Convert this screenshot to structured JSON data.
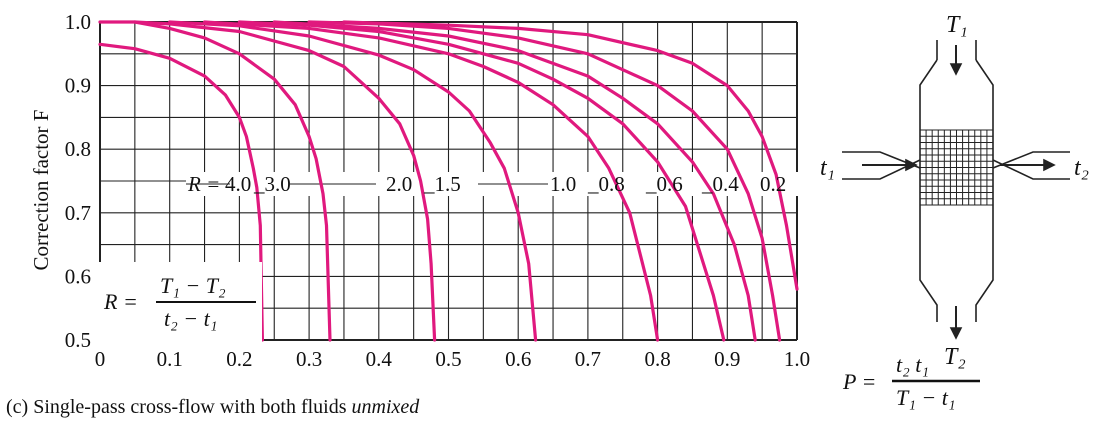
{
  "chart_data": {
    "type": "line",
    "ylabel": "Correction factor F",
    "xlim": [
      0,
      1.0
    ],
    "ylim": [
      0.5,
      1.0
    ],
    "x_ticks": [
      "0",
      "0.1",
      "0.2",
      "0.3",
      "0.4",
      "0.5",
      "0.6",
      "0.7",
      "0.8",
      "0.9",
      "1.0"
    ],
    "y_ticks": [
      "0.5",
      "0.6",
      "0.7",
      "0.8",
      "0.9",
      "1.0"
    ],
    "series": [
      {
        "name": "4.0",
        "x": [
          0,
          0.05,
          0.1,
          0.15,
          0.18,
          0.2,
          0.21,
          0.22,
          0.225,
          0.23,
          0.233
        ],
        "y": [
          0.965,
          0.958,
          0.943,
          0.915,
          0.885,
          0.85,
          0.82,
          0.77,
          0.74,
          0.68,
          0.5
        ]
      },
      {
        "name": "3.0",
        "x": [
          0,
          0.05,
          0.1,
          0.15,
          0.2,
          0.25,
          0.28,
          0.3,
          0.31,
          0.32,
          0.325,
          0.33
        ],
        "y": [
          1.0,
          1.0,
          0.99,
          0.975,
          0.95,
          0.91,
          0.87,
          0.82,
          0.785,
          0.73,
          0.68,
          0.5
        ]
      },
      {
        "name": "2.0",
        "x": [
          0.05,
          0.1,
          0.2,
          0.3,
          0.35,
          0.4,
          0.43,
          0.45,
          0.46,
          0.47,
          0.475,
          0.48
        ],
        "y": [
          1.0,
          0.997,
          0.985,
          0.955,
          0.93,
          0.88,
          0.84,
          0.79,
          0.75,
          0.69,
          0.62,
          0.5
        ]
      },
      {
        "name": "1.5",
        "x": [
          0.1,
          0.2,
          0.3,
          0.4,
          0.45,
          0.5,
          0.53,
          0.56,
          0.58,
          0.6,
          0.615,
          0.625
        ],
        "y": [
          1.0,
          0.994,
          0.978,
          0.948,
          0.925,
          0.89,
          0.86,
          0.81,
          0.77,
          0.7,
          0.62,
          0.5
        ]
      },
      {
        "name": "1.0",
        "x": [
          0.15,
          0.3,
          0.4,
          0.5,
          0.55,
          0.6,
          0.65,
          0.7,
          0.73,
          0.76,
          0.79,
          0.8
        ],
        "y": [
          1.0,
          0.99,
          0.975,
          0.95,
          0.93,
          0.905,
          0.87,
          0.82,
          0.77,
          0.7,
          0.57,
          0.5
        ]
      },
      {
        "name": "0.8",
        "x": [
          0.2,
          0.3,
          0.4,
          0.5,
          0.6,
          0.65,
          0.7,
          0.75,
          0.8,
          0.84,
          0.88,
          0.895
        ],
        "y": [
          1.0,
          0.995,
          0.985,
          0.965,
          0.935,
          0.91,
          0.88,
          0.84,
          0.78,
          0.71,
          0.57,
          0.5
        ]
      },
      {
        "name": "0.6",
        "x": [
          0.25,
          0.4,
          0.5,
          0.6,
          0.7,
          0.75,
          0.8,
          0.85,
          0.88,
          0.91,
          0.93,
          0.94
        ],
        "y": [
          1.0,
          0.99,
          0.978,
          0.955,
          0.915,
          0.88,
          0.84,
          0.78,
          0.73,
          0.65,
          0.57,
          0.5
        ]
      },
      {
        "name": "0.4",
        "x": [
          0.3,
          0.4,
          0.5,
          0.6,
          0.7,
          0.8,
          0.85,
          0.9,
          0.93,
          0.95,
          0.965,
          0.975
        ],
        "y": [
          1.0,
          0.997,
          0.99,
          0.975,
          0.95,
          0.9,
          0.86,
          0.8,
          0.73,
          0.66,
          0.57,
          0.5
        ]
      },
      {
        "name": "0.2",
        "x": [
          0.35,
          0.5,
          0.6,
          0.7,
          0.8,
          0.85,
          0.9,
          0.93,
          0.95,
          0.97,
          0.985,
          1.0
        ],
        "y": [
          1.0,
          0.995,
          0.99,
          0.98,
          0.955,
          0.935,
          0.9,
          0.86,
          0.82,
          0.76,
          0.68,
          0.58
        ]
      }
    ],
    "curve_label_prefix": "R = ",
    "curve_label_text": [
      "4.0",
      "_3.0",
      "2.0",
      "_1.5",
      "1.0",
      "_0.8",
      "_0.6",
      "_0.4",
      "0.2"
    ],
    "r_formula": {
      "lhs": "R =",
      "numerator": "T₁ − T₂",
      "denominator": "t₂ − t₁"
    },
    "p_formula": {
      "lhs": "P =",
      "numerator": "t₂   t₁",
      "denominator": "T₁ − t₁"
    },
    "caption_prefix": "(c) Single-pass cross-flow with both fluids ",
    "caption_emph": "unmixed",
    "colors": {
      "curves": "#e0197e",
      "grid": "#222222"
    }
  },
  "diagram": {
    "labels": {
      "T1": "T₁",
      "T2": "T₂",
      "t1": "t₁",
      "t2": "t₂"
    }
  }
}
